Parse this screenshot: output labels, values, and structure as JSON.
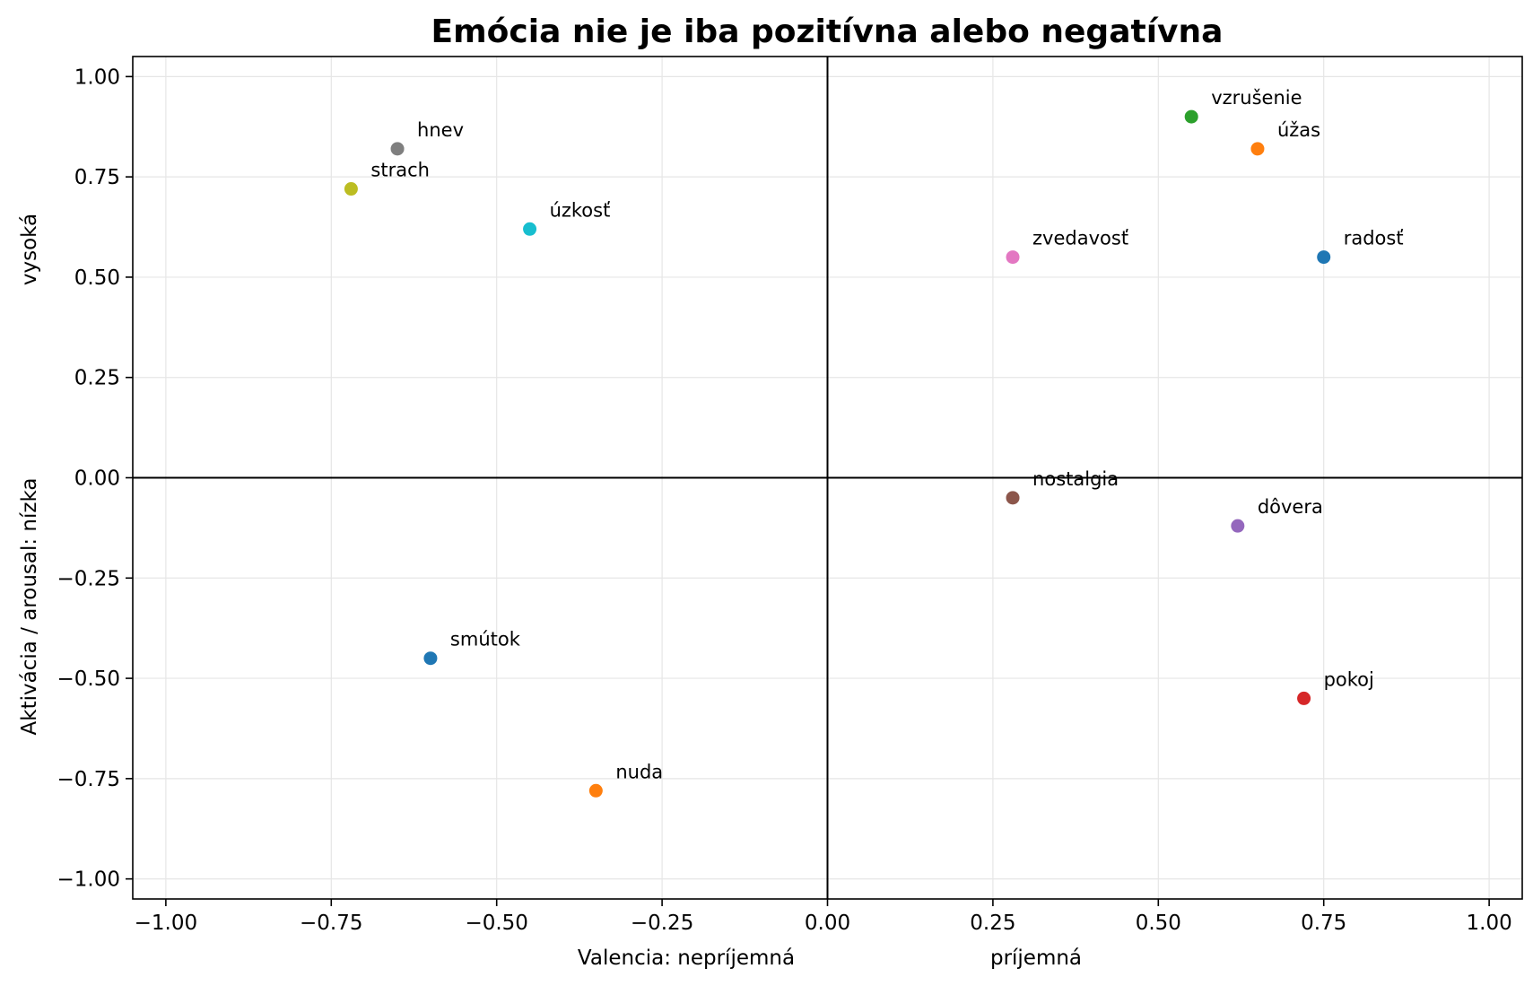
{
  "chart_data": {
    "type": "scatter",
    "title": "Emócia nie je iba pozitívna alebo negatívna",
    "xlabel_left": "Valencia: nepríjemná",
    "xlabel_right": "príjemná",
    "ylabel_bottom": "Aktivácia / arousal: nízka",
    "ylabel_top": "vysoká",
    "xlim": [
      -1.05,
      1.05
    ],
    "ylim": [
      -1.05,
      1.05
    ],
    "xticks": [
      -1.0,
      -0.75,
      -0.5,
      -0.25,
      0.0,
      0.25,
      0.5,
      0.75,
      1.0
    ],
    "yticks": [
      -1.0,
      -0.75,
      -0.5,
      -0.25,
      0.0,
      0.25,
      0.5,
      0.75,
      1.0
    ],
    "xtick_labels": [
      "−1.00",
      "−0.75",
      "−0.50",
      "−0.25",
      "0.00",
      "0.25",
      "0.50",
      "0.75",
      "1.00"
    ],
    "ytick_labels": [
      "−1.00",
      "−0.75",
      "−0.50",
      "−0.25",
      "0.00",
      "0.25",
      "0.50",
      "0.75",
      "1.00"
    ],
    "grid": true,
    "quadrant_lines": {
      "x": 0,
      "y": 0
    },
    "points": [
      {
        "label": "radosť",
        "x": 0.75,
        "y": 0.55,
        "color": "#1f77b4"
      },
      {
        "label": "úžas",
        "x": 0.65,
        "y": 0.82,
        "color": "#ff7f0e"
      },
      {
        "label": "vzrušenie",
        "x": 0.55,
        "y": 0.9,
        "color": "#2ca02c"
      },
      {
        "label": "pokoj",
        "x": 0.72,
        "y": -0.55,
        "color": "#d62728"
      },
      {
        "label": "dôvera",
        "x": 0.62,
        "y": -0.12,
        "color": "#9467bd"
      },
      {
        "label": "nostalgia",
        "x": 0.28,
        "y": -0.05,
        "color": "#8c564b"
      },
      {
        "label": "zvedavosť",
        "x": 0.28,
        "y": 0.55,
        "color": "#e377c2"
      },
      {
        "label": "hnev",
        "x": -0.65,
        "y": 0.82,
        "color": "#7f7f7f"
      },
      {
        "label": "strach",
        "x": -0.72,
        "y": 0.72,
        "color": "#bcbd22"
      },
      {
        "label": "úzkosť",
        "x": -0.45,
        "y": 0.62,
        "color": "#17becf"
      },
      {
        "label": "smútok",
        "x": -0.6,
        "y": -0.45,
        "color": "#1f77b4"
      },
      {
        "label": "nuda",
        "x": -0.35,
        "y": -0.78,
        "color": "#ff7f0e"
      }
    ]
  }
}
